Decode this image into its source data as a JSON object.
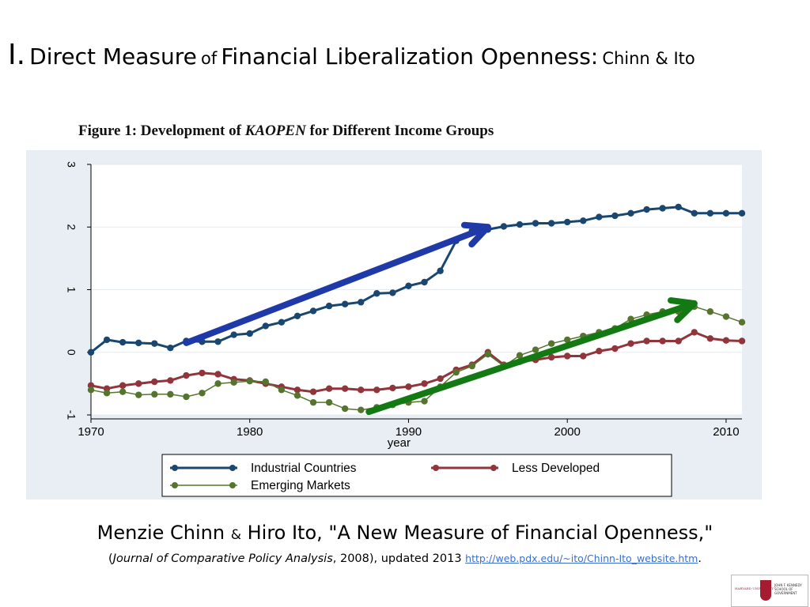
{
  "slide": {
    "title_numeral": "I.",
    "title_part1": "Direct Measure",
    "title_of": "of",
    "title_part2": "Financial Liberalization Openness:",
    "title_authors": "Chinn & Ito",
    "figure_caption_prefix": "Figure 1: Development of",
    "figure_caption_var": "KAOPEN",
    "figure_caption_suffix": "for Different Income Groups",
    "citation_authors_a": "Menzie Chinn",
    "citation_amp": "&",
    "citation_authors_b": "Hiro Ito, \"A New Measure of Financial Openness,\"",
    "citation_open": "(",
    "citation_journal": "Journal of Comparative Policy Analysis",
    "citation_details": ", 2008), updated 2013",
    "citation_url": "http://web.pdx.edu/~ito/Chinn-Ito_website.htm",
    "citation_end": ".",
    "logo_left": "HARVARD UNIVERSITY",
    "logo_right": "JOHN F. KENNEDY SCHOOL OF GOVERNMENT"
  },
  "chart_data": {
    "type": "line",
    "title": "",
    "xlabel": "year",
    "ylabel": "",
    "xlim": [
      1970,
      2011
    ],
    "ylim": [
      -1,
      3
    ],
    "x_ticks": [
      1970,
      1980,
      1990,
      2000,
      2010
    ],
    "y_ticks": [
      -1,
      0,
      1,
      2,
      3
    ],
    "grid": true,
    "legend_position": "bottom",
    "x": [
      1970,
      1971,
      1972,
      1973,
      1974,
      1975,
      1976,
      1977,
      1978,
      1979,
      1980,
      1981,
      1982,
      1983,
      1984,
      1985,
      1986,
      1987,
      1988,
      1989,
      1990,
      1991,
      1992,
      1993,
      1994,
      1995,
      1996,
      1997,
      1998,
      1999,
      2000,
      2001,
      2002,
      2003,
      2004,
      2005,
      2006,
      2007,
      2008,
      2009,
      2010,
      2011
    ],
    "series": [
      {
        "name": "Industrial Countries",
        "color": "#1a476f",
        "values": [
          0.0,
          0.2,
          0.16,
          0.15,
          0.14,
          0.07,
          0.18,
          0.17,
          0.17,
          0.28,
          0.3,
          0.42,
          0.48,
          0.58,
          0.66,
          0.74,
          0.77,
          0.8,
          0.94,
          0.95,
          1.06,
          1.12,
          1.3,
          1.78,
          1.94,
          1.96,
          2.01,
          2.04,
          2.06,
          2.06,
          2.08,
          2.1,
          2.16,
          2.18,
          2.22,
          2.28,
          2.3,
          2.32,
          2.22,
          2.22,
          2.22,
          2.22
        ]
      },
      {
        "name": "Less Developed",
        "color": "#90353b",
        "values": [
          -0.53,
          -0.58,
          -0.53,
          -0.5,
          -0.47,
          -0.45,
          -0.37,
          -0.33,
          -0.35,
          -0.43,
          -0.45,
          -0.5,
          -0.55,
          -0.6,
          -0.63,
          -0.58,
          -0.58,
          -0.6,
          -0.6,
          -0.57,
          -0.55,
          -0.5,
          -0.42,
          -0.28,
          -0.2,
          0.0,
          -0.2,
          -0.15,
          -0.12,
          -0.08,
          -0.06,
          -0.06,
          0.02,
          0.06,
          0.14,
          0.18,
          0.18,
          0.18,
          0.32,
          0.22,
          0.19,
          0.18
        ]
      },
      {
        "name": "Emerging Markets",
        "color": "#55752f",
        "values": [
          -0.6,
          -0.65,
          -0.63,
          -0.68,
          -0.67,
          -0.67,
          -0.71,
          -0.65,
          -0.5,
          -0.48,
          -0.46,
          -0.47,
          -0.6,
          -0.69,
          -0.8,
          -0.8,
          -0.9,
          -0.92,
          -0.88,
          -0.84,
          -0.8,
          -0.78,
          -0.55,
          -0.32,
          -0.22,
          -0.03,
          -0.22,
          -0.05,
          0.04,
          0.14,
          0.2,
          0.26,
          0.32,
          0.38,
          0.53,
          0.6,
          0.65,
          0.65,
          0.73,
          0.65,
          0.57,
          0.48
        ]
      }
    ],
    "annotations": [
      {
        "type": "arrow",
        "color": "#1f3aa8",
        "from": [
          1976,
          0.15
        ],
        "to": [
          1995,
          2.0
        ]
      },
      {
        "type": "arrow",
        "color": "#137a13",
        "from": [
          1987.5,
          -0.95
        ],
        "to": [
          2008,
          0.78
        ]
      }
    ]
  }
}
